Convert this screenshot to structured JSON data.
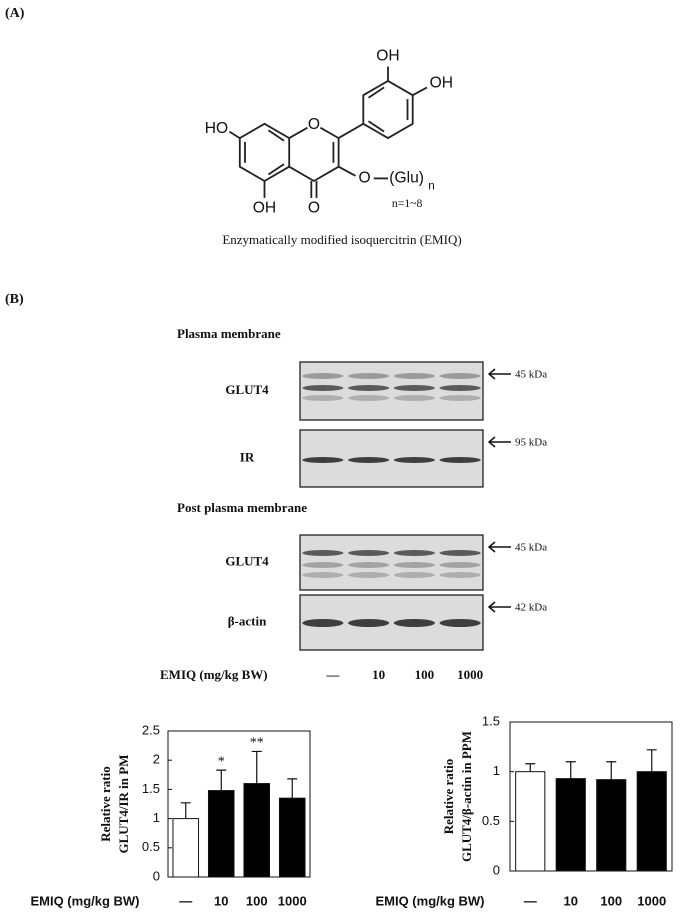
{
  "panel_a": {
    "label": "(A)",
    "structure": {
      "top_oh": "OH",
      "right_oh": "OH",
      "left_ho": "HO",
      "ring_o": "O",
      "bottom_oh": "OH",
      "keto_o": "O",
      "ether_o": "O",
      "glu": "(Glu)",
      "glu_sub": "n",
      "n_range": "n=1~8"
    },
    "caption": "Enzymatically modified isoquercitrin (EMIQ)"
  },
  "panel_b": {
    "label": "(B)",
    "pm_heading": "Plasma membrane",
    "pm_blots": [
      {
        "protein": "GLUT4",
        "size": "45 kDa"
      },
      {
        "protein": "IR",
        "size": "95 kDa"
      }
    ],
    "ppm_heading": "Post  plasma membrane",
    "ppm_blots": [
      {
        "protein": "GLUT4",
        "size": "45 kDa"
      },
      {
        "protein": "β-actin",
        "size": "42 kDa"
      }
    ],
    "lane_title": "EMIQ (mg/kg BW)",
    "lanes": [
      "—",
      "10",
      "100",
      "1000"
    ]
  },
  "chart_data": [
    {
      "type": "bar",
      "ylabel": [
        "Relative ratio",
        "GLUT4/IR in PM"
      ],
      "xlabel": "EMIQ (mg/kg BW)",
      "categories": [
        "—",
        "10",
        "100",
        "1000"
      ],
      "values": [
        1.0,
        1.48,
        1.6,
        1.35
      ],
      "errors": [
        0.27,
        0.35,
        0.55,
        0.33
      ],
      "colors": [
        "#ffffff",
        "#000000",
        "#000000",
        "#000000"
      ],
      "annotations": [
        {
          "category": "10",
          "text": "*"
        },
        {
          "category": "100",
          "text": "**"
        }
      ],
      "ylim": [
        0,
        2.5
      ],
      "yticks": [
        0,
        0.5,
        1,
        1.5,
        2,
        2.5
      ]
    },
    {
      "type": "bar",
      "ylabel": [
        "Relative ratio",
        "GLUT4/β-actin in PPM"
      ],
      "xlabel": "EMIQ (mg/kg BW)",
      "categories": [
        "—",
        "10",
        "100",
        "1000"
      ],
      "values": [
        1.0,
        0.93,
        0.92,
        1.0
      ],
      "errors": [
        0.08,
        0.17,
        0.18,
        0.22
      ],
      "colors": [
        "#ffffff",
        "#000000",
        "#000000",
        "#000000"
      ],
      "ylim": [
        0,
        1.5
      ],
      "yticks": [
        0,
        0.5,
        1,
        1.5
      ]
    }
  ]
}
